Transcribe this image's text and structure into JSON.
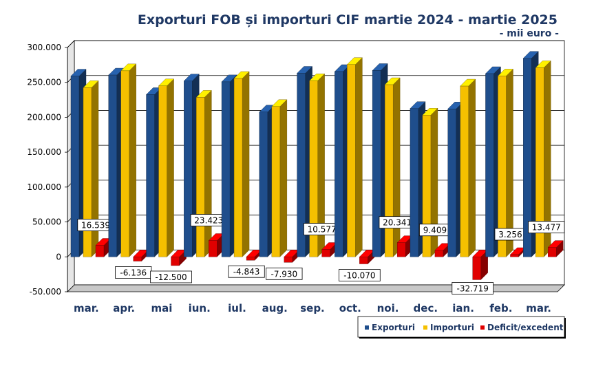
{
  "chart_data": {
    "type": "bar",
    "title": "Exporturi FOB și importuri CIF martie 2024 - martie 2025",
    "subtitle": "- mii euro -",
    "categories": [
      "mar.",
      "apr.",
      "mai",
      "iun.",
      "iul.",
      "aug.",
      "sep.",
      "oct.",
      "noi.",
      "dec.",
      "ian.",
      "feb.",
      "mar."
    ],
    "series": [
      {
        "name": "Exporturi",
        "color": "#1f4e8c",
        "values": [
          259000,
          260500,
          232500,
          252000,
          250800,
          207500,
          263000,
          265500,
          267000,
          212500,
          212000,
          262500,
          284500
        ]
      },
      {
        "name": "Importuri",
        "color": "#f5c000",
        "values": [
          242500,
          266600,
          245000,
          228600,
          255600,
          215400,
          252400,
          275600,
          246700,
          203100,
          244700,
          259200,
          271000
        ]
      },
      {
        "name": "Deficit/excedent",
        "color": "#e00000",
        "values": [
          16539,
          -6136,
          -12500,
          23423,
          -4843,
          -7930,
          10577,
          -10070,
          20341,
          9409,
          -32719,
          3256,
          13477
        ]
      }
    ],
    "data_labels": [
      "16.539",
      "-6.136",
      "-12.500",
      "23.423",
      "-4.843",
      "-7.930",
      "10.577",
      "-10.070",
      "20.341",
      "9.409",
      "-32.719",
      "3.256",
      "13.477"
    ],
    "yticks": [
      {
        "v": 300000,
        "label": "300.000"
      },
      {
        "v": 250000,
        "label": "250.000"
      },
      {
        "v": 200000,
        "label": "200.000"
      },
      {
        "v": 150000,
        "label": "150.000"
      },
      {
        "v": 100000,
        "label": "100.000"
      },
      {
        "v": 50000,
        "label": "50.000"
      },
      {
        "v": 0,
        "label": "0"
      },
      {
        "v": -50000,
        "label": "-50.000"
      }
    ],
    "ylim": [
      -50000,
      300000
    ],
    "grid": true,
    "legend_position": "bottom-right"
  }
}
